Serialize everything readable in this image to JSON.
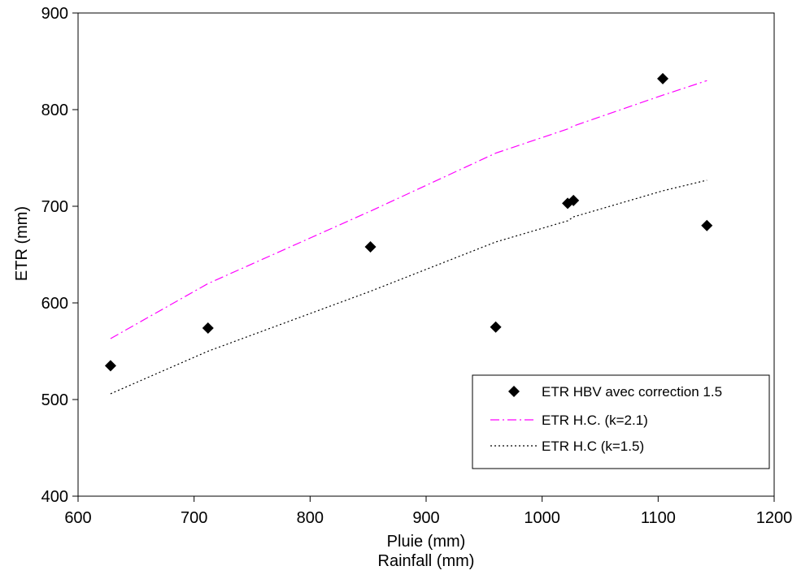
{
  "chart_data": {
    "type": "scatter",
    "xlabel": [
      "Pluie (mm)",
      "Rainfall (mm)"
    ],
    "ylabel": "ETR (mm)",
    "xlim": [
      600,
      1200
    ],
    "ylim": [
      400,
      900
    ],
    "xticks": [
      "600",
      "700",
      "800",
      "900",
      "1000",
      "1100",
      "1200"
    ],
    "yticks": [
      "400",
      "500",
      "600",
      "700",
      "800",
      "900"
    ],
    "grid": false,
    "legend_position": "bottom-right",
    "series": [
      {
        "name": "ETR HBV avec correction 1.5",
        "kind": "scatter",
        "marker": "diamond",
        "color": "#000000",
        "x": [
          628,
          712,
          852,
          960,
          1022,
          1027,
          1104,
          1142
        ],
        "y": [
          535,
          574,
          658,
          575,
          703,
          706,
          832,
          680
        ]
      },
      {
        "name": "ETR H.C. (k=2.1)",
        "kind": "line",
        "dash": "dashdot",
        "color": "#ff00ff",
        "x": [
          628,
          712,
          852,
          960,
          1022,
          1027,
          1104,
          1142
        ],
        "y": [
          563,
          620,
          695,
          755,
          780,
          783,
          815,
          830
        ]
      },
      {
        "name": "ETR H.C (k=1.5)",
        "kind": "line",
        "dash": "dotted",
        "color": "#000000",
        "x": [
          628,
          712,
          852,
          960,
          1022,
          1027,
          1104,
          1142
        ],
        "y": [
          506,
          550,
          612,
          663,
          685,
          689,
          716,
          727
        ]
      }
    ]
  }
}
